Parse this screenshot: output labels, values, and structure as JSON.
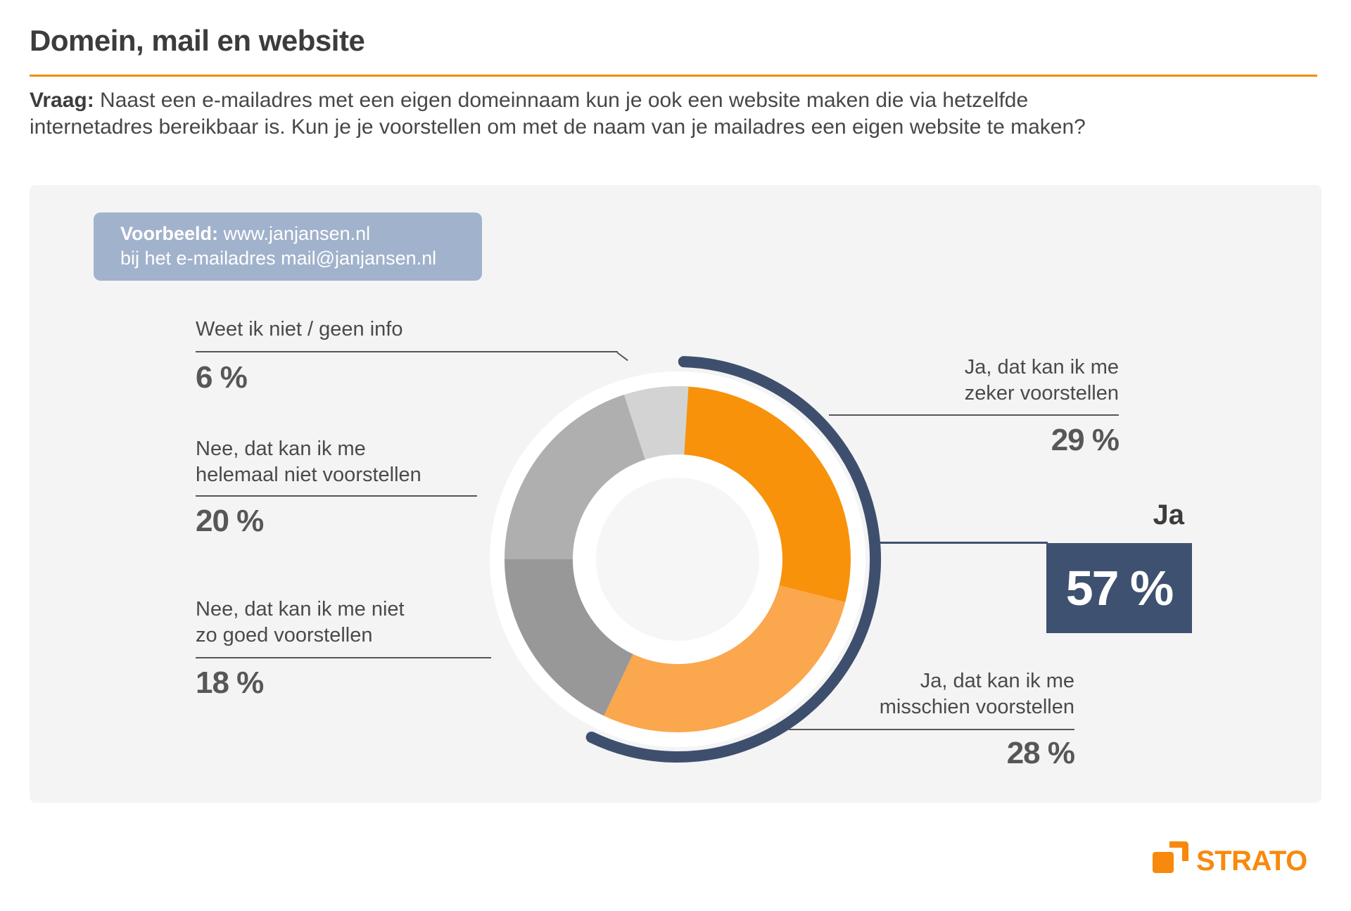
{
  "header": {
    "title": "Domein, mail en website",
    "question_label": "Vraag:",
    "question_line1_rest": " Naast een e-mailadres met een eigen domeinnaam kun je ook een website maken die via hetzelfde",
    "question_line2": "internetadres bereikbaar is. Kun je je voorstellen om met de naam van je mailadres een eigen website te maken?"
  },
  "example_box": {
    "label": "Voorbeeld:",
    "line1_rest": " www.janjansen.nl",
    "line2": "bij het e-mailadres mail@janjansen.nl"
  },
  "chart_data": {
    "type": "pie",
    "subtype": "donut",
    "title": "Domein, mail en website",
    "start_angle_deg": 0,
    "direction": "clockwise",
    "legend_position": "callouts",
    "segments": [
      {
        "label": "Ja, dat kan ik me zeker voorstellen",
        "value": 29,
        "display": "29 %",
        "color": "#F8920B"
      },
      {
        "label": "Ja, dat kan ik me misschien voorstellen",
        "value": 28,
        "display": "28 %",
        "color": "#FAA74E"
      },
      {
        "label": "Nee, dat kan ik me niet zo goed voorstellen",
        "value": 18,
        "display": "18 %",
        "color": "#989898"
      },
      {
        "label": "Nee, dat kan ik me helemaal niet voorstellen",
        "value": 20,
        "display": "20 %",
        "color": "#AFAFAF"
      },
      {
        "label": "Weet ik niet / geen info",
        "value": 6,
        "display": "6 %",
        "color": "#D3D3D3"
      }
    ],
    "highlight_total": {
      "label": "Ja",
      "value": 57,
      "display": "57 %",
      "arc_span_pct": 57,
      "box_color": "#3F5170",
      "arc_color": "#3E4F6E"
    },
    "colors": {
      "accent_orange": "#F8890D",
      "panel_background": "#F4F4F5",
      "example_box_background": "#A1B2CC",
      "navy": "#3F5170"
    }
  },
  "footer": {
    "brand": "STRATO"
  }
}
